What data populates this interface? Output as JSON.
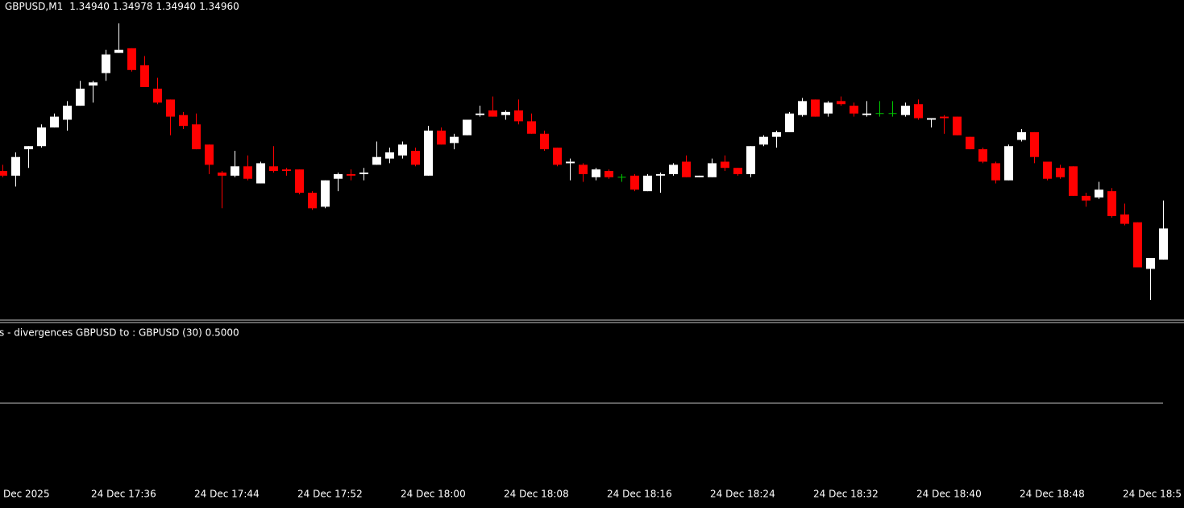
{
  "chart_data": {
    "type": "candlestick",
    "header": {
      "symbol": "GBPUSD,M1",
      "ohlc_labels": [
        "1.34940",
        "1.34978",
        "1.34940",
        "1.34960"
      ]
    },
    "indicator_label": "s - divergences GBPUSD to : GBPUSD (30) 0.5000",
    "up_color": "#ffffff",
    "down_color": "#ff0000",
    "doji_color": "#00c800",
    "categories": [
      "Dec 2025",
      null,
      null,
      null,
      null,
      null,
      null,
      "24 Dec 17:36",
      null,
      null,
      null,
      null,
      null,
      null,
      null,
      "24 Dec 17:44",
      null,
      null,
      null,
      null,
      null,
      null,
      null,
      "24 Dec 17:52",
      null,
      null,
      null,
      null,
      null,
      null,
      null,
      "24 Dec 18:00",
      null,
      null,
      null,
      null,
      null,
      null,
      null,
      "24 Dec 18:08",
      null,
      null,
      null,
      null,
      null,
      null,
      null,
      "24 Dec 18:16",
      null,
      null,
      null,
      null,
      null,
      null,
      null,
      "24 Dec 18:24",
      null,
      null,
      null,
      null,
      null,
      null,
      null,
      "24 Dec 18:32",
      null,
      null,
      null,
      null,
      null,
      null,
      null,
      "24 Dec 18:40",
      null,
      null,
      null,
      null,
      null,
      null,
      null,
      "24 Dec 18:48",
      null,
      null,
      null,
      null,
      null,
      null,
      null,
      "24 Dec 18:5",
      null,
      null,
      null
    ],
    "open": [
      1.34997,
      1.34994,
      1.35011,
      1.35013,
      1.35025,
      1.3503,
      1.35039,
      1.35052,
      1.3506,
      1.35073,
      1.35076,
      1.35065,
      1.3505,
      1.35043,
      1.35033,
      1.35027,
      1.35014,
      1.34996,
      1.34994,
      1.35,
      1.34989,
      1.35,
      1.34998,
      1.34998,
      1.34983,
      1.34974,
      1.34992,
      1.34995,
      1.34995,
      1.35001,
      1.35005,
      1.35007,
      1.3501,
      1.34994,
      1.35023,
      1.35015,
      1.3502,
      1.35033,
      1.35036,
      1.35033,
      1.35036,
      1.35029,
      1.35021,
      1.35012,
      1.35002,
      1.35001,
      1.34993,
      1.34997,
      1.34993,
      1.34994,
      1.34984,
      1.34994,
      1.34995,
      1.35003,
      1.34993,
      1.34993,
      1.35003,
      1.34999,
      1.34995,
      1.35014,
      1.35019,
      1.35022,
      1.35033,
      1.35043,
      1.35034,
      1.35042,
      1.35039,
      1.35033,
      1.35034,
      1.35034,
      1.35033,
      1.3504,
      1.3503,
      1.35032,
      1.35032,
      1.35019,
      1.35011,
      1.35002,
      1.34991,
      1.35017,
      1.35022,
      1.35003,
      1.34999,
      1.35,
      1.34981,
      1.3498,
      1.34984,
      1.34969,
      1.34964,
      1.34934,
      1.3494
    ],
    "high": [
      1.35001,
      1.35009,
      1.35013,
      1.35027,
      1.35034,
      1.35042,
      1.35055,
      1.35055,
      1.35075,
      1.35092,
      1.35076,
      1.35071,
      1.35057,
      1.35043,
      1.35035,
      1.35034,
      1.35014,
      1.34997,
      1.3501,
      1.35007,
      1.35003,
      1.35013,
      1.34999,
      1.34998,
      1.34984,
      1.34991,
      1.34996,
      1.34998,
      1.34999,
      1.35016,
      1.35012,
      1.35016,
      1.35012,
      1.35026,
      1.35025,
      1.35021,
      1.3503,
      1.35039,
      1.35045,
      1.35036,
      1.35043,
      1.35034,
      1.35023,
      1.35012,
      1.35005,
      1.35002,
      1.34999,
      1.34998,
      1.34995,
      1.34995,
      1.34995,
      1.34996,
      1.35002,
      1.35007,
      1.34994,
      1.35005,
      1.35007,
      1.34999,
      1.35013,
      1.3502,
      1.35023,
      1.35035,
      1.35044,
      1.35043,
      1.35042,
      1.35045,
      1.35041,
      1.35042,
      1.35042,
      1.35042,
      1.35041,
      1.35043,
      1.35031,
      1.35033,
      1.35032,
      1.35019,
      1.35012,
      1.35003,
      1.35014,
      1.35024,
      1.35022,
      1.35003,
      1.35001,
      1.35,
      1.34983,
      1.3499,
      1.34986,
      1.34976,
      1.34964,
      1.34941,
      1.34978
    ],
    "low": [
      1.34993,
      1.34987,
      1.34999,
      1.35012,
      1.35025,
      1.35023,
      1.35039,
      1.35041,
      1.35055,
      1.35073,
      1.35061,
      1.35051,
      1.3504,
      1.3502,
      1.35024,
      1.35011,
      1.34995,
      1.34973,
      1.34993,
      1.34991,
      1.34989,
      1.34996,
      1.34994,
      1.34982,
      1.34972,
      1.34973,
      1.34984,
      1.34991,
      1.34991,
      1.35001,
      1.35002,
      1.35005,
      1.35,
      1.34994,
      1.35014,
      1.35011,
      1.3502,
      1.35032,
      1.35032,
      1.3503,
      1.35027,
      1.35021,
      1.3501,
      1.35,
      1.34991,
      1.3499,
      1.34991,
      1.34992,
      1.3499,
      1.34984,
      1.34984,
      1.34983,
      1.34994,
      1.34993,
      1.34993,
      1.34993,
      1.34997,
      1.34994,
      1.34993,
      1.35013,
      1.35012,
      1.35022,
      1.35032,
      1.35032,
      1.35032,
      1.35039,
      1.35032,
      1.35032,
      1.35032,
      1.35032,
      1.35032,
      1.3503,
      1.35025,
      1.35021,
      1.3502,
      1.35011,
      1.35002,
      1.34989,
      1.34991,
      1.35016,
      1.35002,
      1.34991,
      1.34992,
      1.34981,
      1.34974,
      1.34979,
      1.34967,
      1.34962,
      1.34935,
      1.34914,
      1.3494
    ],
    "close": [
      1.34994,
      1.35006,
      1.35013,
      1.35025,
      1.35032,
      1.35039,
      1.3505,
      1.35054,
      1.35072,
      1.35075,
      1.35062,
      1.35051,
      1.35041,
      1.35032,
      1.35026,
      1.35011,
      1.35001,
      1.34994,
      1.35,
      1.34992,
      1.35002,
      1.34997,
      1.34997,
      1.34983,
      1.34973,
      1.34991,
      1.34995,
      1.34994,
      1.34996,
      1.35006,
      1.35009,
      1.35014,
      1.35001,
      1.35023,
      1.35014,
      1.35019,
      1.3503,
      1.35034,
      1.35032,
      1.35035,
      1.35029,
      1.35021,
      1.35011,
      1.35001,
      1.35003,
      1.34995,
      1.34998,
      1.34993,
      1.34993,
      1.34985,
      1.34994,
      1.34995,
      1.35001,
      1.34993,
      1.34994,
      1.35002,
      1.34999,
      1.34995,
      1.35013,
      1.35019,
      1.35022,
      1.35034,
      1.35042,
      1.35032,
      1.35041,
      1.3504,
      1.35034,
      1.35034,
      1.35034,
      1.35034,
      1.35039,
      1.35031,
      1.35031,
      1.35031,
      1.3502,
      1.35011,
      1.35003,
      1.34991,
      1.35013,
      1.35022,
      1.35006,
      1.34992,
      1.34993,
      1.34981,
      1.34978,
      1.34985,
      1.34968,
      1.34963,
      1.34935,
      1.34941,
      1.3496
    ]
  }
}
